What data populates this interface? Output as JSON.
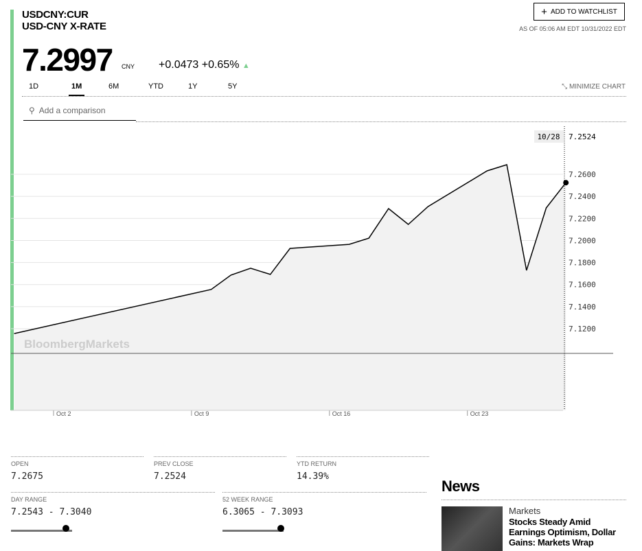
{
  "header": {
    "symbol": "USDCNY:CUR",
    "name": "USD-CNY X-RATE",
    "watchlist_label": "ADD TO WATCHLIST",
    "as_of": "AS OF 05:06 AM EDT 10/31/2022 EDT"
  },
  "quote": {
    "price": "7.2997",
    "currency": "CNY",
    "change": "+0.0473",
    "change_pct": "+0.65%",
    "direction_icon": "triangle-up-icon",
    "up_color": "#7ccf8f"
  },
  "tabs": [
    {
      "label": "1D"
    },
    {
      "label": "1M",
      "active": true
    },
    {
      "label": "6M"
    },
    {
      "label": "YTD"
    },
    {
      "label": "1Y"
    },
    {
      "label": "5Y"
    }
  ],
  "minimize_label": "MINIMIZE CHART",
  "search": {
    "placeholder": "Add a comparison"
  },
  "chart_data": {
    "type": "area",
    "watermark": "BloombergMarkets",
    "hover": {
      "date": "10/28",
      "value": "7.2524"
    },
    "x_tick_labels": [
      "Oct 2",
      "Oct 9",
      "Oct 16",
      "Oct 23"
    ],
    "y_tick_labels": [
      "7.2600",
      "7.2400",
      "7.2200",
      "7.2000",
      "7.1800",
      "7.1600",
      "7.1400",
      "7.1200"
    ],
    "ylim": [
      7.1,
      7.28
    ],
    "grid": true,
    "x": [
      "2022-09-30",
      "2022-10-10",
      "2022-10-11",
      "2022-10-12",
      "2022-10-13",
      "2022-10-14",
      "2022-10-17",
      "2022-10-18",
      "2022-10-19",
      "2022-10-20",
      "2022-10-21",
      "2022-10-24",
      "2022-10-25",
      "2022-10-26",
      "2022-10-27",
      "2022-10-28"
    ],
    "values": [
      7.1156,
      7.1556,
      7.1686,
      7.1748,
      7.1692,
      7.1928,
      7.1965,
      7.2021,
      7.2289,
      7.2146,
      7.2307,
      7.2631,
      7.2687,
      7.1729,
      7.2295,
      7.2524
    ],
    "line_color": "#000000",
    "fill_color": "#f2f2f2"
  },
  "stats": {
    "open": {
      "label": "OPEN",
      "value": "7.2675"
    },
    "prev_close": {
      "label": "PREV CLOSE",
      "value": "7.2524"
    },
    "ytd_return": {
      "label": "YTD RETURN",
      "value": "14.39%"
    },
    "day_range": {
      "label": "DAY RANGE",
      "value": "7.2543 - 7.3040",
      "position": 0.9
    },
    "week52_range": {
      "label": "52 WEEK RANGE",
      "value": "6.3065 - 7.3093",
      "position": 0.96
    }
  },
  "news": {
    "title": "News",
    "items": [
      {
        "category": "Markets",
        "headline": "Stocks Steady Amid Earnings Optimism, Dollar Gains: Markets Wrap"
      }
    ]
  }
}
